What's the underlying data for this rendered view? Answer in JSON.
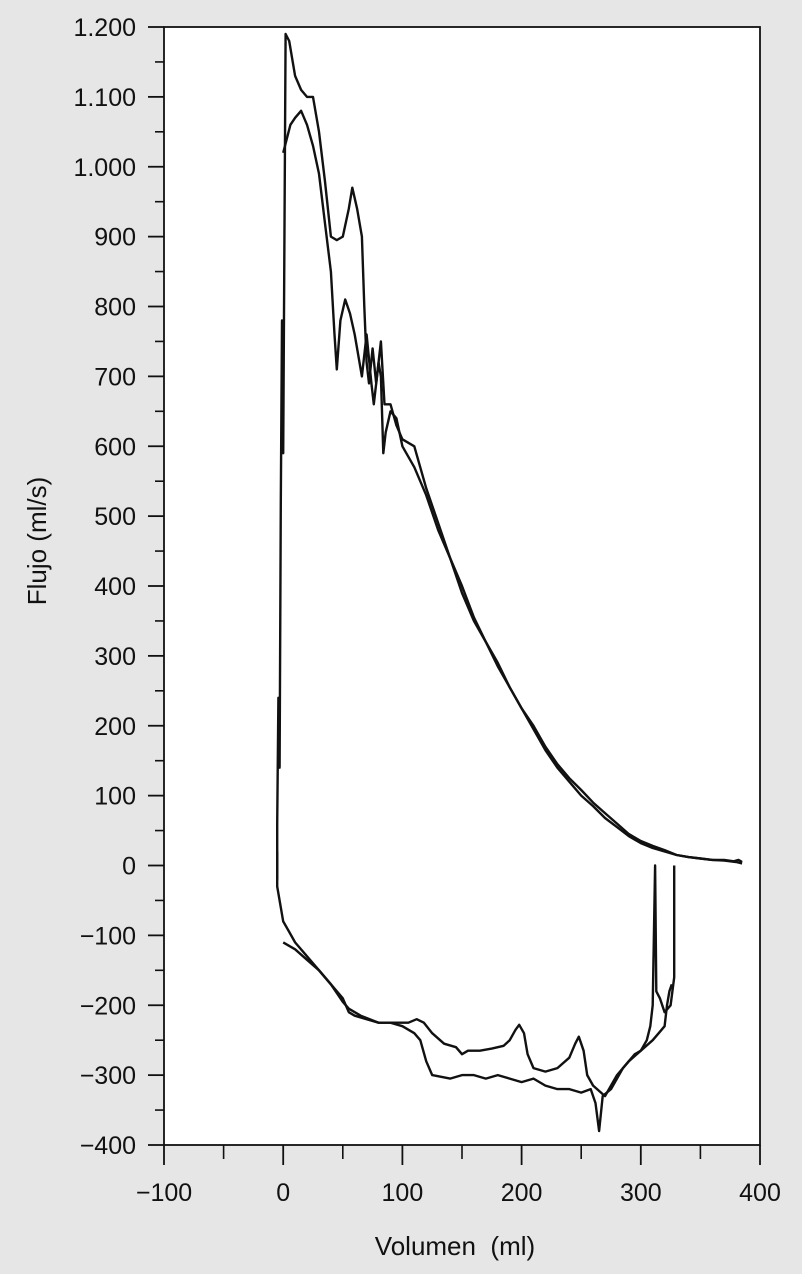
{
  "chart_data": {
    "type": "line",
    "title": "",
    "xlabel": "Volumen  (ml)",
    "ylabel": "Flujo (ml/s)",
    "xlim": [
      -100,
      400
    ],
    "ylim": [
      -400,
      1200
    ],
    "grid": false,
    "x_ticks": [
      -100,
      0,
      100,
      200,
      300,
      400
    ],
    "x_tick_labels": [
      "−100",
      "0",
      "100",
      "200",
      "300",
      "400"
    ],
    "y_ticks": [
      1200,
      1100,
      1000,
      900,
      800,
      700,
      600,
      500,
      400,
      300,
      200,
      100,
      0,
      -100,
      -200,
      -300,
      -400
    ],
    "y_tick_labels": [
      "1.200",
      "1.100",
      "1.000",
      "900",
      "800",
      "700",
      "600",
      "500",
      "400",
      "300",
      "200",
      "100",
      "0",
      "−100",
      "−200",
      "−300",
      "−400"
    ],
    "series": [
      {
        "points": [
          [
            -5,
            -20
          ],
          [
            -5,
            60
          ],
          [
            -4,
            240
          ],
          [
            -3,
            140
          ],
          [
            -2,
            520
          ],
          [
            -1,
            780
          ],
          [
            0,
            590
          ],
          [
            2,
            1190
          ],
          [
            5,
            1180
          ],
          [
            10,
            1130
          ],
          [
            15,
            1110
          ],
          [
            20,
            1100
          ],
          [
            25,
            1100
          ],
          [
            30,
            1050
          ],
          [
            35,
            980
          ],
          [
            40,
            900
          ],
          [
            45,
            895
          ],
          [
            50,
            900
          ],
          [
            55,
            940
          ],
          [
            58,
            970
          ],
          [
            62,
            940
          ],
          [
            66,
            900
          ],
          [
            68,
            800
          ],
          [
            70,
            720
          ],
          [
            72,
            690
          ],
          [
            75,
            740
          ],
          [
            78,
            690
          ],
          [
            82,
            750
          ],
          [
            85,
            660
          ],
          [
            90,
            660
          ],
          [
            95,
            630
          ],
          [
            100,
            610
          ],
          [
            110,
            600
          ],
          [
            120,
            540
          ],
          [
            130,
            490
          ],
          [
            140,
            440
          ],
          [
            150,
            390
          ],
          [
            160,
            350
          ],
          [
            170,
            320
          ],
          [
            180,
            285
          ],
          [
            190,
            255
          ],
          [
            200,
            225
          ],
          [
            210,
            195
          ],
          [
            220,
            165
          ],
          [
            230,
            140
          ],
          [
            240,
            120
          ],
          [
            250,
            100
          ],
          [
            260,
            85
          ],
          [
            270,
            68
          ],
          [
            280,
            55
          ],
          [
            290,
            42
          ],
          [
            300,
            32
          ],
          [
            310,
            25
          ],
          [
            320,
            20
          ],
          [
            330,
            15
          ],
          [
            340,
            12
          ],
          [
            350,
            10
          ],
          [
            360,
            8
          ],
          [
            370,
            8
          ],
          [
            378,
            6
          ],
          [
            382,
            8
          ],
          [
            385,
            5
          ]
        ]
      },
      {
        "points": [
          [
            -5,
            20
          ],
          [
            -5,
            -30
          ],
          [
            -2,
            -60
          ],
          [
            0,
            -80
          ],
          [
            5,
            -95
          ],
          [
            10,
            -110
          ],
          [
            20,
            -130
          ],
          [
            30,
            -150
          ],
          [
            40,
            -170
          ],
          [
            50,
            -190
          ],
          [
            55,
            -210
          ],
          [
            60,
            -215
          ],
          [
            70,
            -220
          ],
          [
            80,
            -225
          ],
          [
            90,
            -225
          ],
          [
            100,
            -230
          ],
          [
            110,
            -240
          ],
          [
            115,
            -250
          ],
          [
            120,
            -280
          ],
          [
            125,
            -300
          ],
          [
            140,
            -305
          ],
          [
            150,
            -300
          ],
          [
            160,
            -300
          ],
          [
            170,
            -305
          ],
          [
            180,
            -300
          ],
          [
            190,
            -305
          ],
          [
            200,
            -310
          ],
          [
            210,
            -305
          ],
          [
            220,
            -315
          ],
          [
            230,
            -320
          ],
          [
            240,
            -320
          ],
          [
            250,
            -325
          ],
          [
            258,
            -320
          ],
          [
            262,
            -340
          ],
          [
            265,
            -380
          ],
          [
            268,
            -330
          ],
          [
            275,
            -320
          ],
          [
            285,
            -290
          ],
          [
            295,
            -270
          ],
          [
            300,
            -265
          ],
          [
            305,
            -250
          ],
          [
            308,
            -230
          ],
          [
            310,
            -200
          ],
          [
            312,
            0
          ],
          [
            313,
            -180
          ],
          [
            316,
            -190
          ],
          [
            320,
            -210
          ],
          [
            325,
            -200
          ],
          [
            328,
            -160
          ],
          [
            328,
            0
          ]
        ]
      },
      {
        "points": [
          [
            0,
            1020
          ],
          [
            3,
            1040
          ],
          [
            6,
            1060
          ],
          [
            10,
            1070
          ],
          [
            15,
            1080
          ],
          [
            20,
            1060
          ],
          [
            25,
            1030
          ],
          [
            30,
            990
          ],
          [
            35,
            920
          ],
          [
            40,
            850
          ],
          [
            43,
            760
          ],
          [
            45,
            710
          ],
          [
            48,
            780
          ],
          [
            52,
            810
          ],
          [
            56,
            790
          ],
          [
            60,
            760
          ],
          [
            64,
            720
          ],
          [
            66,
            700
          ],
          [
            70,
            760
          ],
          [
            74,
            690
          ],
          [
            76,
            660
          ],
          [
            80,
            720
          ],
          [
            82,
            700
          ],
          [
            84,
            590
          ],
          [
            86,
            620
          ],
          [
            90,
            650
          ],
          [
            95,
            640
          ],
          [
            100,
            600
          ],
          [
            110,
            570
          ],
          [
            120,
            530
          ],
          [
            130,
            480
          ],
          [
            140,
            440
          ],
          [
            150,
            400
          ],
          [
            160,
            355
          ],
          [
            170,
            320
          ],
          [
            180,
            290
          ],
          [
            190,
            255
          ],
          [
            200,
            225
          ],
          [
            210,
            200
          ],
          [
            220,
            170
          ],
          [
            230,
            145
          ],
          [
            240,
            125
          ],
          [
            250,
            108
          ],
          [
            260,
            90
          ],
          [
            270,
            75
          ],
          [
            280,
            60
          ],
          [
            290,
            45
          ],
          [
            300,
            35
          ],
          [
            310,
            28
          ],
          [
            320,
            22
          ],
          [
            330,
            15
          ],
          [
            340,
            12
          ],
          [
            350,
            10
          ],
          [
            360,
            8
          ],
          [
            370,
            7
          ],
          [
            380,
            5
          ],
          [
            385,
            3
          ]
        ]
      },
      {
        "points": [
          [
            0,
            -110
          ],
          [
            10,
            -120
          ],
          [
            20,
            -135
          ],
          [
            30,
            -150
          ],
          [
            40,
            -170
          ],
          [
            50,
            -195
          ],
          [
            55,
            -205
          ],
          [
            65,
            -215
          ],
          [
            80,
            -225
          ],
          [
            95,
            -225
          ],
          [
            105,
            -225
          ],
          [
            112,
            -220
          ],
          [
            118,
            -225
          ],
          [
            125,
            -240
          ],
          [
            135,
            -255
          ],
          [
            145,
            -260
          ],
          [
            150,
            -270
          ],
          [
            155,
            -265
          ],
          [
            165,
            -265
          ],
          [
            175,
            -262
          ],
          [
            185,
            -258
          ],
          [
            190,
            -250
          ],
          [
            195,
            -235
          ],
          [
            198,
            -228
          ],
          [
            202,
            -240
          ],
          [
            205,
            -270
          ],
          [
            210,
            -290
          ],
          [
            220,
            -295
          ],
          [
            230,
            -290
          ],
          [
            240,
            -275
          ],
          [
            245,
            -255
          ],
          [
            248,
            -245
          ],
          [
            252,
            -265
          ],
          [
            255,
            -300
          ],
          [
            260,
            -315
          ],
          [
            270,
            -330
          ],
          [
            280,
            -300
          ],
          [
            290,
            -280
          ],
          [
            300,
            -265
          ],
          [
            310,
            -250
          ],
          [
            315,
            -240
          ],
          [
            320,
            -230
          ],
          [
            322,
            -200
          ],
          [
            324,
            -180
          ],
          [
            326,
            -170
          ]
        ]
      }
    ]
  }
}
